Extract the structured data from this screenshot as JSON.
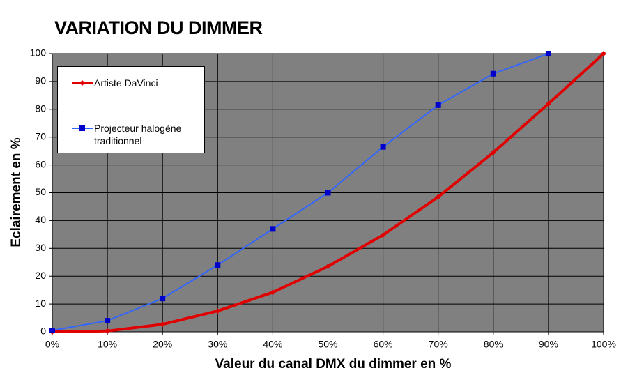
{
  "chart_data": {
    "type": "line",
    "title": "VARIATION DU DIMMER",
    "x_label": "Valeur du canal DMX du dimmer en %",
    "y_label": "Eclairement en %",
    "x": [
      0,
      10,
      20,
      30,
      40,
      50,
      60,
      70,
      80,
      90,
      100
    ],
    "series": [
      {
        "name": "Artiste DaVinci",
        "color": "#e00000",
        "marker": "diamond",
        "values": [
          0,
          0.3,
          2.7,
          7.5,
          14.2,
          23.5,
          34.8,
          48.5,
          64.5,
          82,
          100
        ]
      },
      {
        "name": "Projecteur halogène traditionnel",
        "color": "#3366ff",
        "marker_color": "#0000cc",
        "marker": "square",
        "values": [
          0.5,
          4,
          12,
          24,
          37,
          50,
          66.5,
          81.5,
          92.8,
          100,
          null
        ]
      }
    ],
    "xlim": [
      0,
      100
    ],
    "xticks": [
      {
        "value": 0,
        "label": "0%"
      },
      {
        "value": 10,
        "label": "10%"
      },
      {
        "value": 20,
        "label": "20%"
      },
      {
        "value": 30,
        "label": "30%"
      },
      {
        "value": 40,
        "label": "40%"
      },
      {
        "value": 50,
        "label": "50%"
      },
      {
        "value": 60,
        "label": "60%"
      },
      {
        "value": 70,
        "label": "70%"
      },
      {
        "value": 80,
        "label": "80%"
      },
      {
        "value": 90,
        "label": "90%"
      },
      {
        "value": 100,
        "label": "100%"
      }
    ],
    "ylim": [
      0,
      100
    ],
    "yticks": [
      0,
      10,
      20,
      30,
      40,
      50,
      60,
      70,
      80,
      90,
      100
    ],
    "grid": true,
    "plot_background": "#808080",
    "legend": "upper left"
  }
}
